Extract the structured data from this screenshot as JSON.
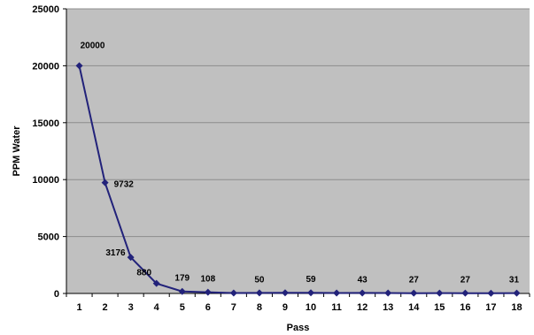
{
  "chart_data": {
    "type": "line",
    "title": "",
    "xlabel": "Pass",
    "ylabel": "PPM Water",
    "ylim": [
      0,
      25000
    ],
    "yticks": [
      0,
      5000,
      10000,
      15000,
      20000,
      25000
    ],
    "x": [
      1,
      2,
      3,
      4,
      5,
      6,
      7,
      8,
      9,
      10,
      11,
      12,
      13,
      14,
      15,
      16,
      17,
      18
    ],
    "xtick_labels": [
      "1",
      "2",
      "3",
      "4",
      "5",
      "6",
      "7",
      "8",
      "9",
      "10",
      "11",
      "12",
      "13",
      "14",
      "15",
      "16",
      "17",
      "18"
    ],
    "values": [
      20000,
      9732,
      3176,
      880,
      179,
      108,
      40,
      50,
      60,
      59,
      40,
      43,
      35,
      27,
      30,
      27,
      20,
      31
    ],
    "data_labels": [
      {
        "x": 1,
        "text": "20000"
      },
      {
        "x": 2,
        "text": "9732"
      },
      {
        "x": 3,
        "text": "3176"
      },
      {
        "x": 4,
        "text": "880"
      },
      {
        "x": 5,
        "text": "179"
      },
      {
        "x": 6,
        "text": "108"
      },
      {
        "x": 8,
        "text": "50"
      },
      {
        "x": 10,
        "text": "59"
      },
      {
        "x": 12,
        "text": "43"
      },
      {
        "x": 14,
        "text": "27"
      },
      {
        "x": 16,
        "text": "27"
      },
      {
        "x": 18,
        "text": "31"
      }
    ],
    "grid": true,
    "legend": "none",
    "colors": {
      "plot_background": "#c0c0c0",
      "gridline": "#8c8c8c",
      "series": "#22227a",
      "axis": "#000000"
    }
  }
}
